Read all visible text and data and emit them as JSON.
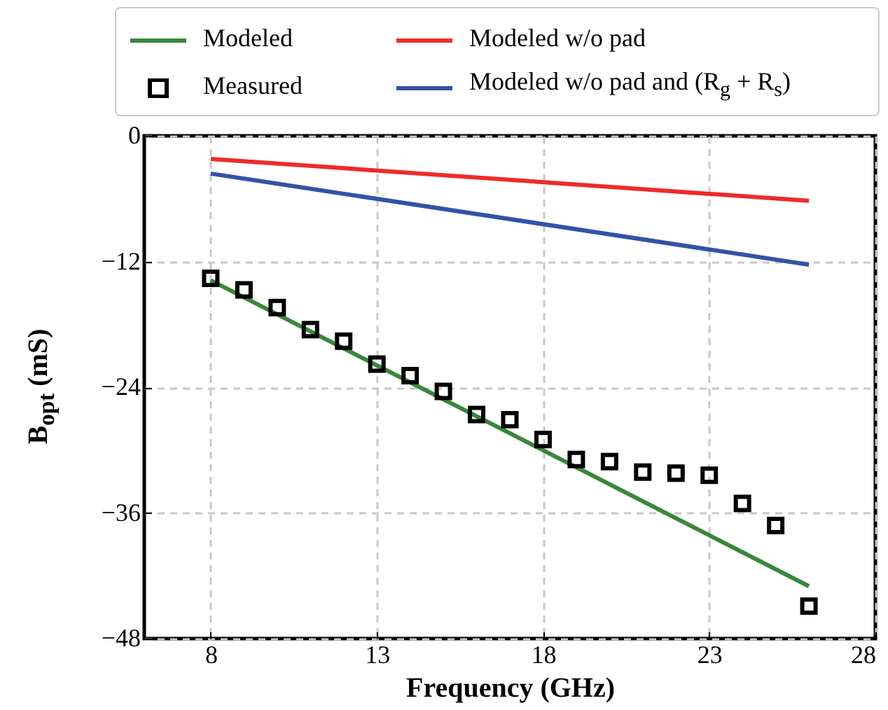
{
  "chart_data": {
    "type": "line",
    "xlabel": "Frequency (GHz)",
    "ylabel": "B$_{opt}$ (mS)",
    "xlim": [
      6,
      28
    ],
    "xticks": [
      8,
      13,
      18,
      23,
      28
    ],
    "ylim": [
      -48,
      0
    ],
    "yticks": [
      -48,
      -36,
      -24,
      -12,
      0
    ],
    "grid": true,
    "legend": "top",
    "line_style": "solid",
    "series": [
      {
        "name": "Modeled",
        "color": "#3a873a",
        "x": [
          8,
          26
        ],
        "values": [
          -13.8,
          -43.0
        ]
      },
      {
        "name": "Measured",
        "type": "scatter",
        "marker": "square",
        "color": "#000000",
        "x": [
          8,
          9,
          10,
          11,
          12,
          13,
          14,
          15,
          16,
          17,
          18,
          19,
          20,
          21,
          22,
          23,
          24,
          25,
          26
        ],
        "values": [
          -13.6,
          -14.7,
          -16.4,
          -18.5,
          -19.6,
          -21.8,
          -22.9,
          -24.4,
          -26.6,
          -27.1,
          -29.0,
          -30.9,
          -31.1,
          -32.1,
          -32.2,
          -32.4,
          -35.1,
          -37.2,
          -44.9
        ]
      },
      {
        "name": "Modeled w/o pad",
        "color": "#ee2b2b",
        "x": [
          8,
          26
        ],
        "values": [
          -2.2,
          -6.2
        ]
      },
      {
        "name": "Modeled w/o pad and (R$_{g}$ + R$_{s}$)",
        "color": "#3352a8",
        "x": [
          8,
          26
        ],
        "values": [
          -3.6,
          -12.3
        ]
      }
    ]
  }
}
